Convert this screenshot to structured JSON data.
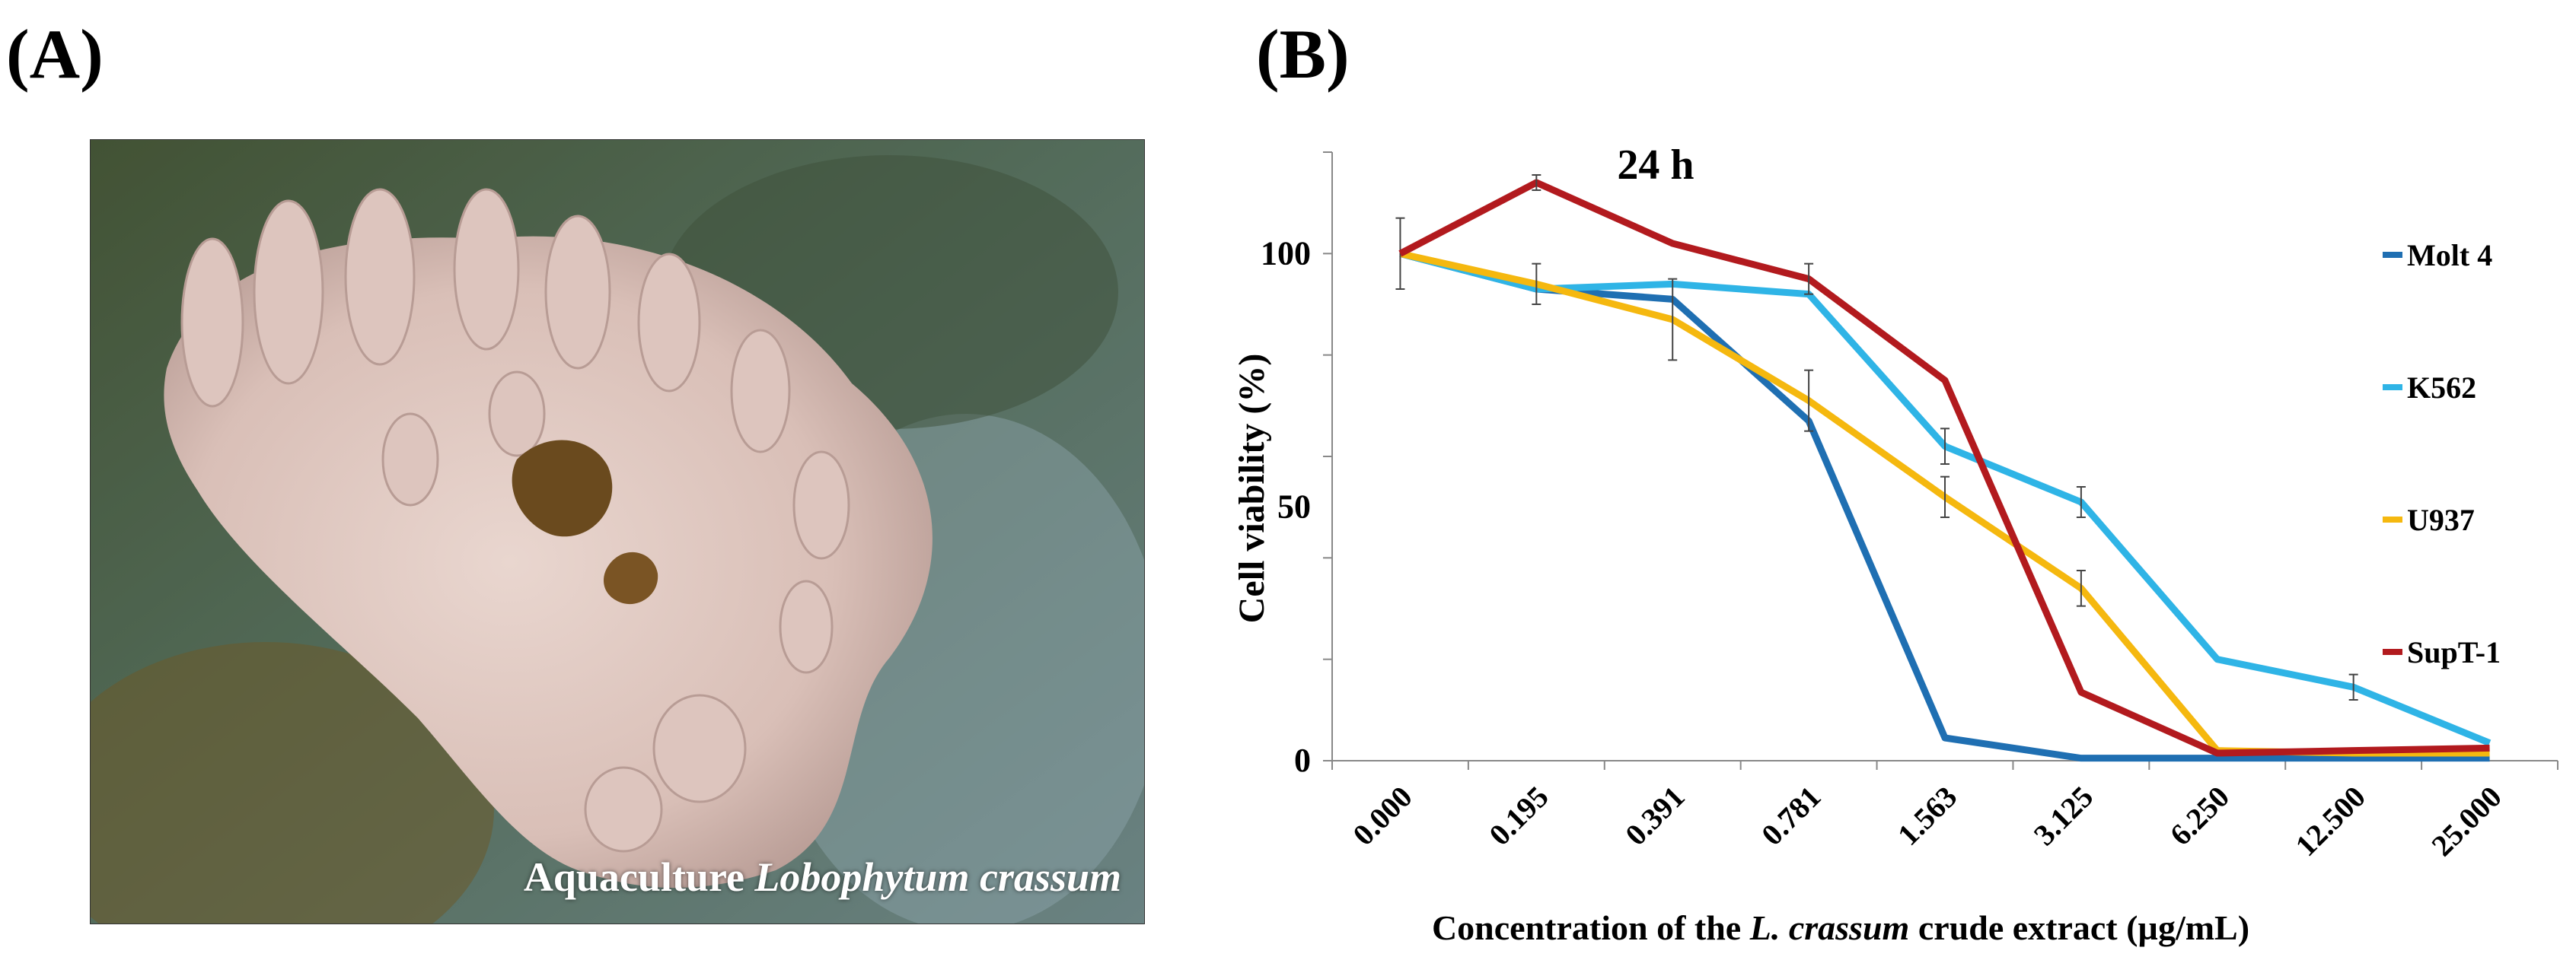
{
  "panels": {
    "a_label": "(A)",
    "b_label": "(B)"
  },
  "photo": {
    "caption_prefix": "Aquaculture ",
    "caption_species": "Lobophytum crassum"
  },
  "chart_data": {
    "type": "line",
    "title": "24 h",
    "xlabel_prefix": "Concentration of the ",
    "xlabel_species": "L. crassum",
    "xlabel_suffix": " crude extract (µg/mL)",
    "ylabel": "Cell viability (%)",
    "categories": [
      "0.000",
      "0.195",
      "0.391",
      "0.781",
      "1.563",
      "3.125",
      "6.250",
      "12.500",
      "25.000"
    ],
    "yticks": [
      0,
      50,
      100
    ],
    "ylim": [
      0,
      120
    ],
    "grid": false,
    "legend_position": "right",
    "series": [
      {
        "name": "Molt 4",
        "color": "#1f6fb2",
        "values": [
          100,
          93,
          91,
          67,
          4.5,
          0.5,
          0.5,
          0.5,
          0.5
        ],
        "errors": [
          0,
          0,
          0,
          0,
          0,
          0,
          0,
          0,
          0
        ]
      },
      {
        "name": "K562",
        "color": "#2fb4e6",
        "values": [
          100,
          93,
          94,
          92,
          62,
          51,
          20,
          14.5,
          3.5
        ],
        "errors": [
          0,
          0,
          0,
          0,
          3.5,
          3,
          0,
          2.5,
          0
        ]
      },
      {
        "name": "U937",
        "color": "#f5b80f",
        "values": [
          100,
          94,
          87,
          71,
          52,
          34,
          2,
          1.5,
          1.5
        ],
        "errors": [
          7,
          4,
          8,
          6,
          4,
          3.5,
          0,
          0,
          0
        ]
      },
      {
        "name": "SupT-1",
        "color": "#b21a1e",
        "values": [
          100,
          114,
          102,
          95,
          75,
          13.5,
          1.5,
          2,
          2.5
        ],
        "errors": [
          0,
          1.5,
          0,
          3,
          0,
          0,
          0,
          0,
          0
        ]
      }
    ]
  }
}
